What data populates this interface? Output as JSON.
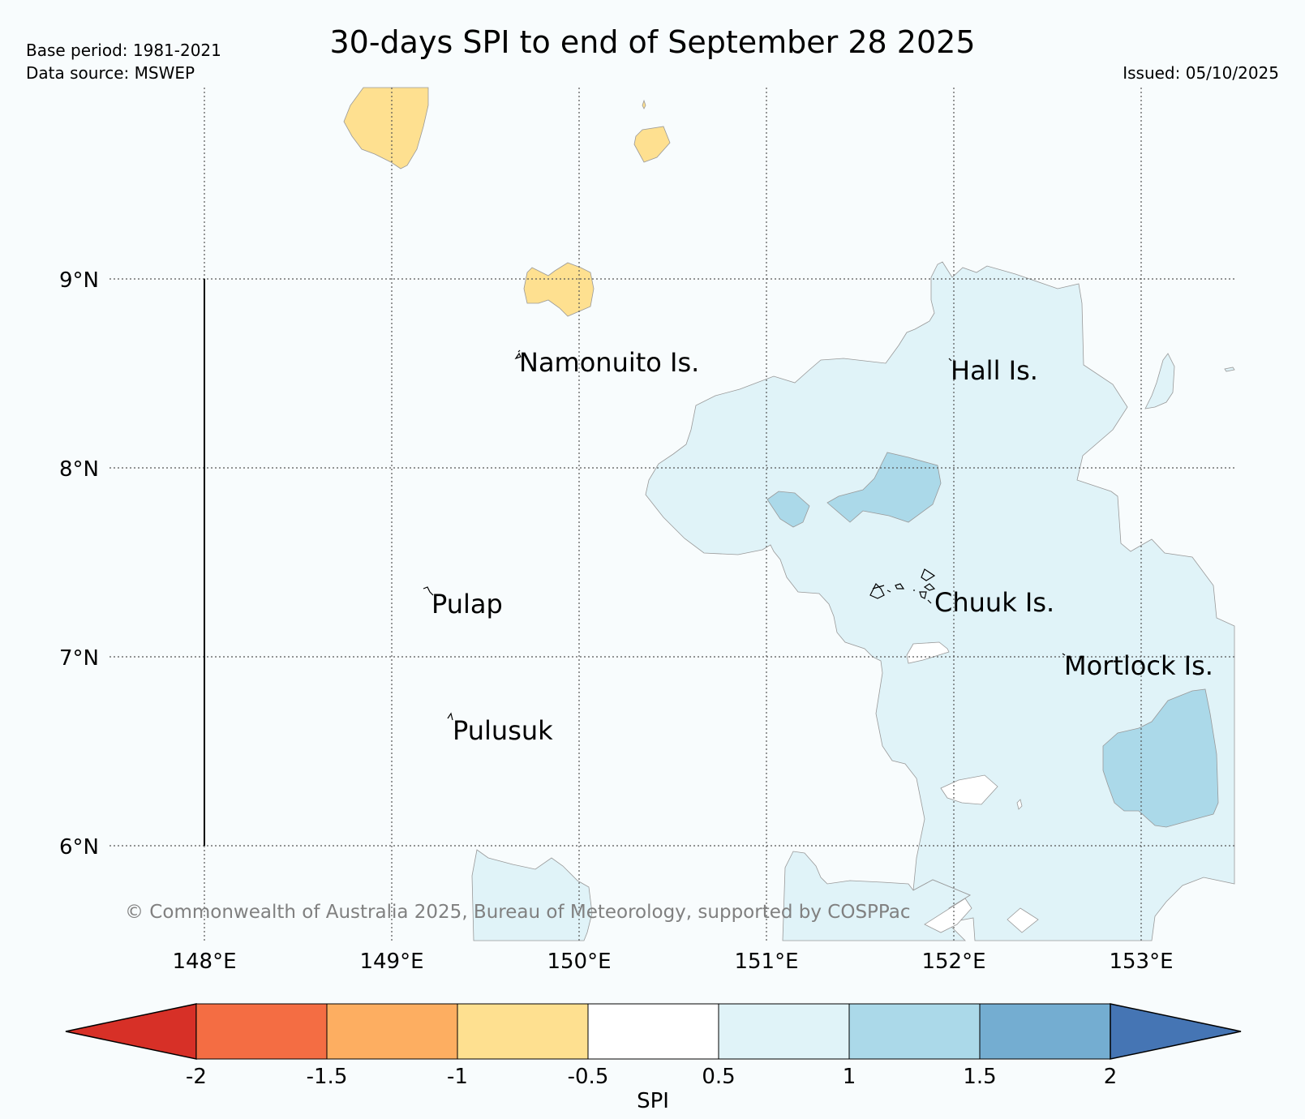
{
  "header": {
    "title": "30-days SPI to end of September 28 2025",
    "base_period": "Base period: 1981-2021",
    "data_source": "Data source: MSWEP",
    "issued": "Issued: 05/10/2025"
  },
  "map": {
    "lon_labels": [
      "148°E",
      "149°E",
      "150°E",
      "151°E",
      "152°E",
      "153°E"
    ],
    "lat_labels": [
      "9°N",
      "8°N",
      "7°N",
      "6°N"
    ],
    "places": [
      {
        "name": "Namonuito Is.",
        "lon": 149.7,
        "lat": 8.55
      },
      {
        "name": "Hall Is.",
        "lon": 152.0,
        "lat": 8.5
      },
      {
        "name": "Pulap",
        "lon": 149.2,
        "lat": 7.3
      },
      {
        "name": "Chuuk Is.",
        "lon": 151.85,
        "lat": 7.35
      },
      {
        "name": "Mortlock Is.",
        "lon": 152.6,
        "lat": 6.95
      },
      {
        "name": "Pulusuk",
        "lon": 149.3,
        "lat": 6.65
      }
    ],
    "copyright": "© Commonwealth of Australia 2025, Bureau of Meteorology, supported by COSPPac"
  },
  "colorbar": {
    "label": "SPI",
    "ticks": [
      "-2",
      "-1.5",
      "-1",
      "-0.5",
      "0.5",
      "1",
      "1.5",
      "2"
    ],
    "colors": {
      "below_min": "#d73027",
      "bins": [
        "#f46d43",
        "#fdae61",
        "#fee090",
        "#ffffff",
        "#e0f3f8",
        "#abd9e9",
        "#74add1"
      ],
      "above_max": "#4575b4"
    }
  }
}
